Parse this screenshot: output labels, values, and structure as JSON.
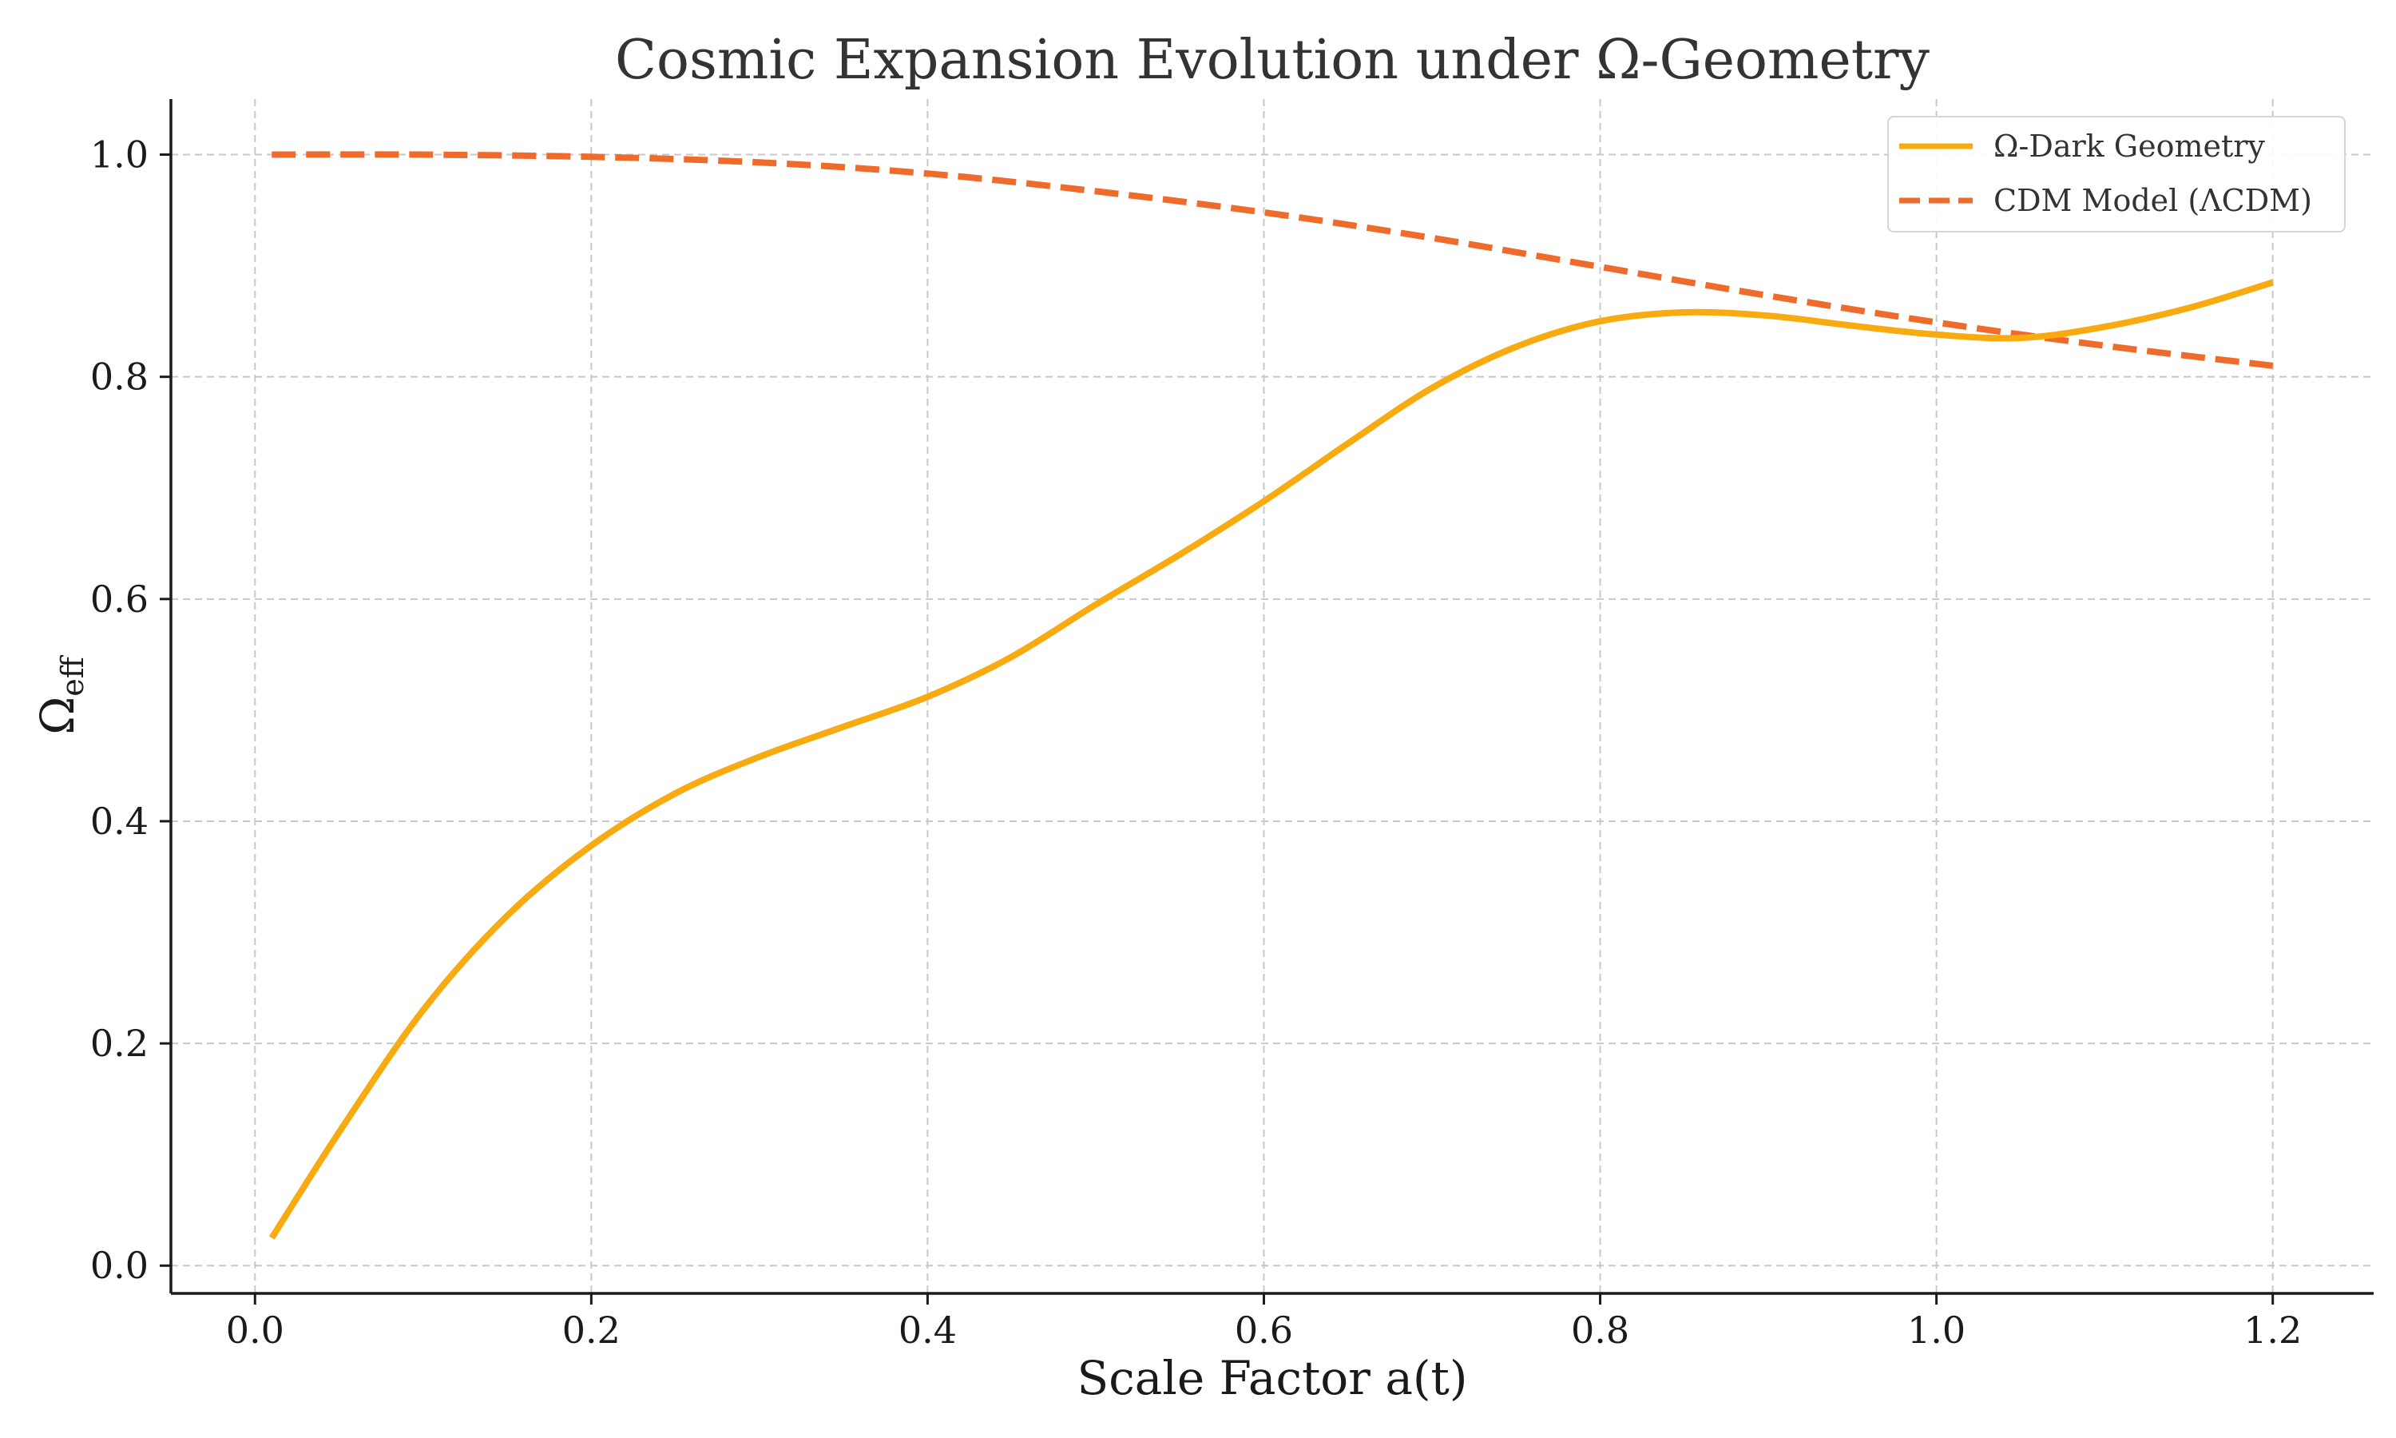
{
  "chart_data": {
    "type": "line",
    "title": "Cosmic Expansion Evolution under Ω-Geometry",
    "xlabel": "Scale Factor a(t)",
    "ylabel": "Ω",
    "ylabel_subscript": "eff",
    "xlim": [
      -0.05,
      1.26
    ],
    "ylim": [
      -0.025,
      1.05
    ],
    "xticks": [
      0.0,
      0.2,
      0.4,
      0.6,
      0.8,
      1.0,
      1.2
    ],
    "yticks": [
      0.0,
      0.2,
      0.4,
      0.6,
      0.8,
      1.0
    ],
    "xtick_labels": [
      "0.0",
      "0.2",
      "0.4",
      "0.6",
      "0.8",
      "1.0",
      "1.2"
    ],
    "ytick_labels": [
      "0.0",
      "0.2",
      "0.4",
      "0.6",
      "0.8",
      "1.0"
    ],
    "grid": true,
    "legend_position": "top-right",
    "series": [
      {
        "name": "Ω-Dark Geometry",
        "style": "solid",
        "color": "#F8AA11",
        "x": [
          0.01,
          0.05,
          0.1,
          0.15,
          0.2,
          0.25,
          0.3,
          0.35,
          0.4,
          0.45,
          0.5,
          0.55,
          0.6,
          0.65,
          0.7,
          0.75,
          0.8,
          0.85,
          0.9,
          0.95,
          1.0,
          1.05,
          1.1,
          1.15,
          1.2
        ],
        "y": [
          0.025,
          0.12,
          0.23,
          0.315,
          0.378,
          0.425,
          0.458,
          0.485,
          0.512,
          0.548,
          0.595,
          0.64,
          0.688,
          0.74,
          0.79,
          0.827,
          0.85,
          0.858,
          0.855,
          0.846,
          0.838,
          0.835,
          0.845,
          0.862,
          0.885
        ]
      },
      {
        "name": "CDM Model (ΛCDM)",
        "style": "dashed",
        "color": "#EE6B2C",
        "x": [
          0.01,
          0.1,
          0.2,
          0.3,
          0.4,
          0.5,
          0.6,
          0.7,
          0.8,
          0.9,
          1.0,
          1.1,
          1.2
        ],
        "y": [
          1.0,
          1.0,
          0.998,
          0.993,
          0.983,
          0.967,
          0.948,
          0.925,
          0.899,
          0.873,
          0.849,
          0.828,
          0.81
        ]
      }
    ]
  }
}
